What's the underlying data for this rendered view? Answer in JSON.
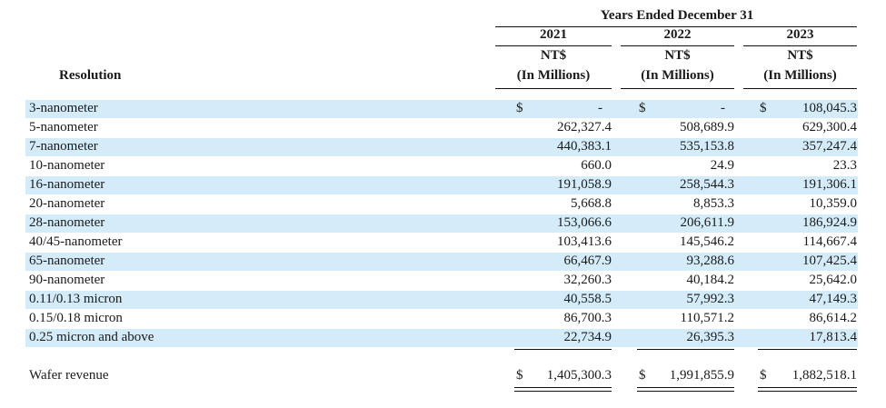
{
  "header": {
    "title": "Years Ended December 31",
    "row_label_header": "Resolution",
    "columns": [
      {
        "year": "2021",
        "currency": "NT$",
        "unit": "(In Millions)"
      },
      {
        "year": "2022",
        "currency": "NT$",
        "unit": "(In Millions)"
      },
      {
        "year": "2023",
        "currency": "NT$",
        "unit": "(In Millions)"
      }
    ]
  },
  "currency_symbol": "$",
  "rows": [
    {
      "label": "3-nanometer",
      "values": [
        "-",
        "-",
        "108,045.3"
      ],
      "highlight": true
    },
    {
      "label": "5-nanometer",
      "values": [
        "262,327.4",
        "508,689.9",
        "629,300.4"
      ],
      "highlight": false
    },
    {
      "label": "7-nanometer",
      "values": [
        "440,383.1",
        "535,153.8",
        "357,247.4"
      ],
      "highlight": true
    },
    {
      "label": "10-nanometer",
      "values": [
        "660.0",
        "24.9",
        "23.3"
      ],
      "highlight": false
    },
    {
      "label": "16-nanometer",
      "values": [
        "191,058.9",
        "258,544.3",
        "191,306.1"
      ],
      "highlight": true
    },
    {
      "label": "20-nanometer",
      "values": [
        "5,668.8",
        "8,853.3",
        "10,359.0"
      ],
      "highlight": false
    },
    {
      "label": "28-nanometer",
      "values": [
        "153,066.6",
        "206,611.9",
        "186,924.9"
      ],
      "highlight": true
    },
    {
      "label": "40/45-nanometer",
      "values": [
        "103,413.6",
        "145,546.2",
        "114,667.4"
      ],
      "highlight": false
    },
    {
      "label": "65-nanometer",
      "values": [
        "66,467.9",
        "93,288.6",
        "107,425.4"
      ],
      "highlight": true
    },
    {
      "label": "90-nanometer",
      "values": [
        "32,260.3",
        "40,184.2",
        "25,642.0"
      ],
      "highlight": false
    },
    {
      "label": "0.11/0.13 micron",
      "values": [
        "40,558.5",
        "57,992.3",
        "47,149.3"
      ],
      "highlight": true
    },
    {
      "label": "0.15/0.18 micron",
      "values": [
        "86,700.3",
        "110,571.2",
        "86,614.2"
      ],
      "highlight": false
    },
    {
      "label": "0.25 micron and above",
      "values": [
        "22,734.9",
        "26,395.3",
        "17,813.4"
      ],
      "highlight": true
    }
  ],
  "total": {
    "label": "Wafer revenue",
    "values": [
      "1,405,300.3",
      "1,991,855.9",
      "1,882,518.1"
    ]
  },
  "colors": {
    "band": "#d4ecf9",
    "text": "#1a1a1a",
    "rule": "#111111"
  }
}
